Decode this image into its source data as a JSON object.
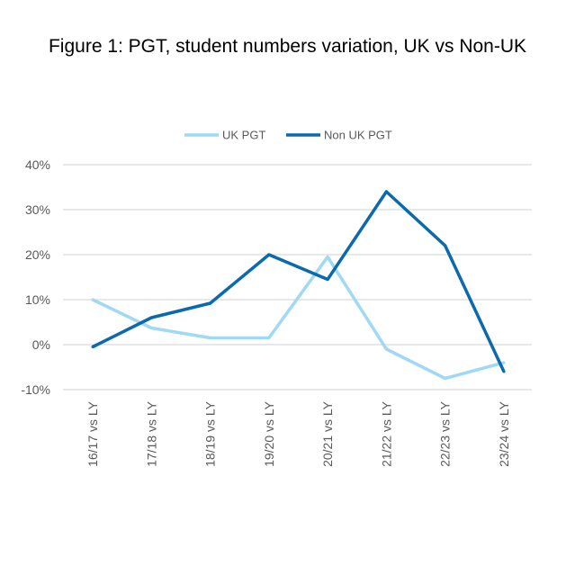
{
  "chart_data": {
    "type": "line",
    "title": "Figure 1: PGT, student numbers variation, UK vs Non-UK",
    "xlabel": "",
    "ylabel": "",
    "categories": [
      "16/17 vs LY",
      "17/18 vs LY",
      "18/19 vs LY",
      "19/20 vs LY",
      "20/21 vs LY",
      "21/22 vs LY",
      "22/23 vs LY",
      "23/24 vs LY"
    ],
    "ylim": [
      -10,
      40
    ],
    "yticks": [
      40,
      30,
      20,
      10,
      0,
      -10
    ],
    "ytick_labels": [
      "40%",
      "30%",
      "20%",
      "10%",
      "0%",
      "-10%"
    ],
    "grid": true,
    "legend_position": "top",
    "series": [
      {
        "name": "UK PGT",
        "color": "#9fd9f3",
        "values": [
          10,
          3.7,
          1.5,
          1.5,
          19.5,
          -1,
          -7.5,
          -4
        ]
      },
      {
        "name": "Non UK PGT",
        "color": "#0a6aad",
        "values": [
          -0.5,
          6,
          9.2,
          20,
          14.5,
          34,
          22,
          -6
        ]
      }
    ]
  }
}
